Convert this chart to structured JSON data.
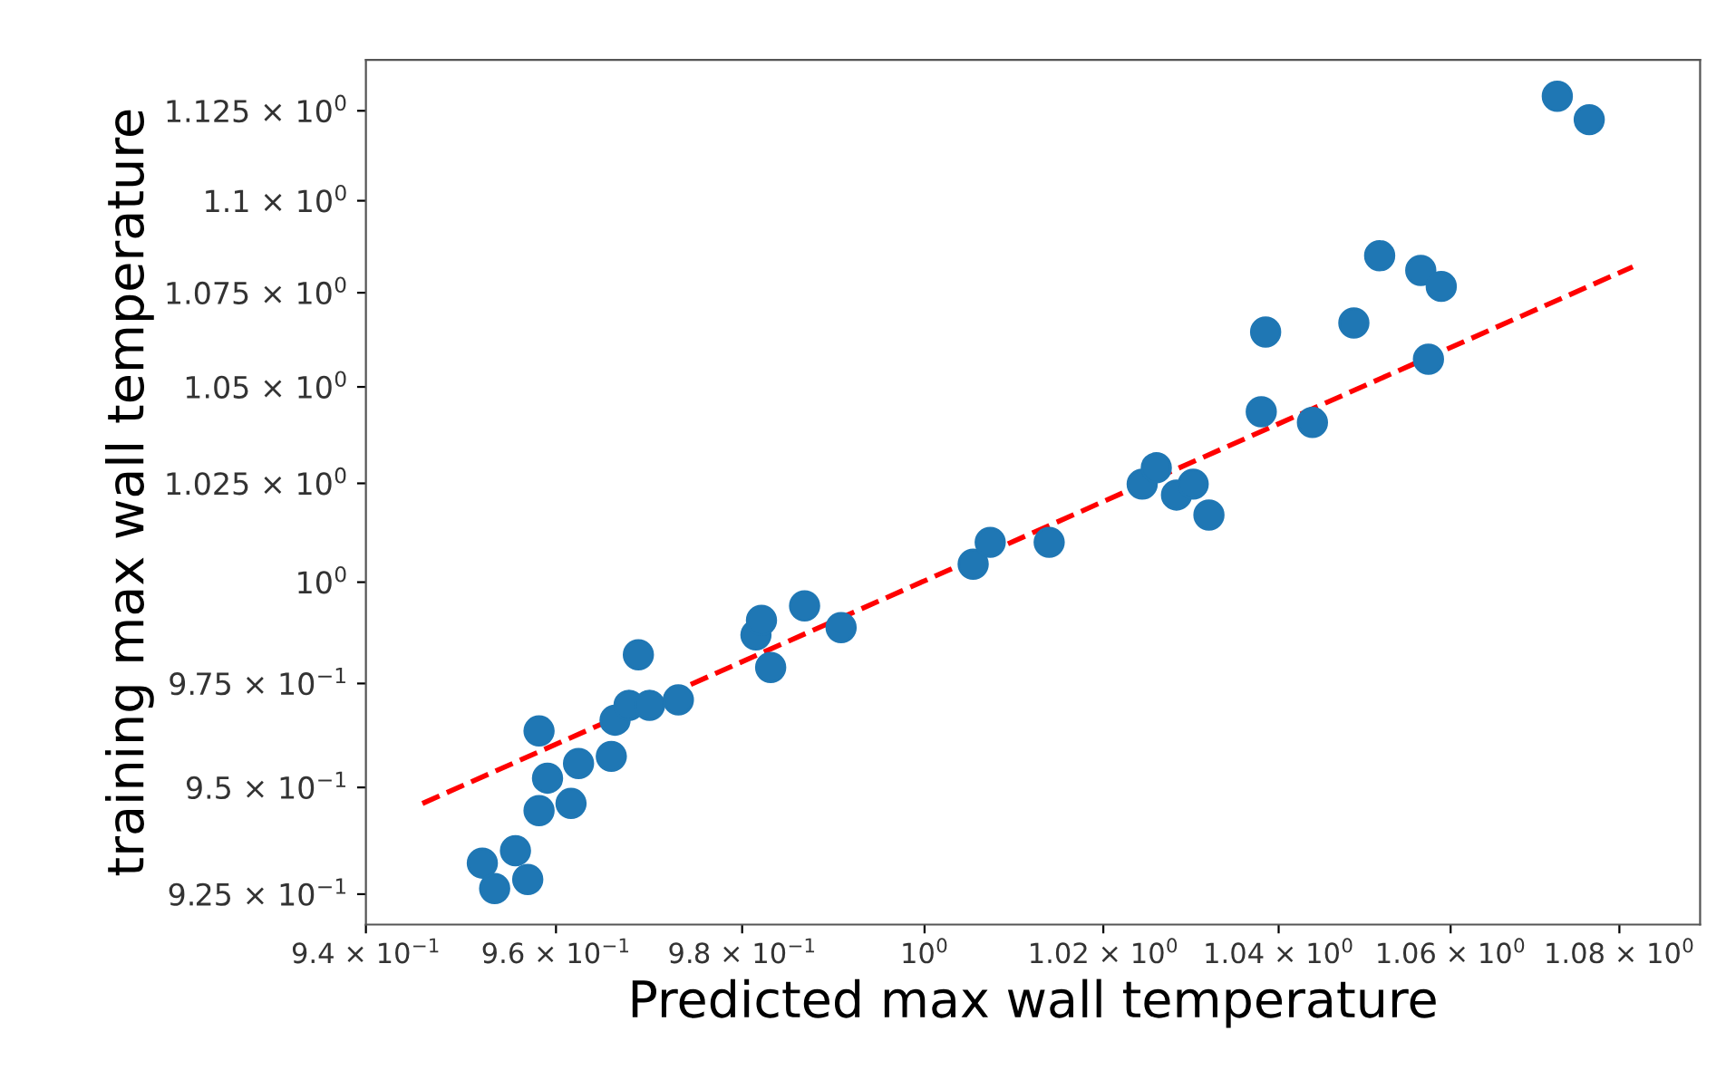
{
  "chart_data": {
    "type": "scatter",
    "xlabel": "Predicted max wall temperature",
    "ylabel": "training max wall temperature",
    "log": "xy",
    "grid": false,
    "legend": false,
    "xlim": [
      0.94,
      1.0897
    ],
    "ylim": [
      0.918,
      1.1394
    ],
    "xticks": [
      {
        "value": 0.94,
        "label": "9.4 × 10$^{−1}$"
      },
      {
        "value": 0.96,
        "label": "9.6 × 10$^{−1}$"
      },
      {
        "value": 0.98,
        "label": "9.8 × 10$^{−1}$"
      },
      {
        "value": 1.0,
        "label": "10$^{0}$"
      },
      {
        "value": 1.02,
        "label": "1.02 × 10$^{0}$"
      },
      {
        "value": 1.04,
        "label": "1.04 × 10$^{0}$"
      },
      {
        "value": 1.06,
        "label": "1.06 × 10$^{0}$"
      },
      {
        "value": 1.08,
        "label": "1.08 × 10$^{0}$"
      }
    ],
    "yticks": [
      {
        "value": 0.925,
        "label": "9.25 × 10$^{−1}$"
      },
      {
        "value": 0.95,
        "label": "9.5 × 10$^{−1}$"
      },
      {
        "value": 0.975,
        "label": "9.75 × 10$^{−1}$"
      },
      {
        "value": 1.0,
        "label": "10$^{0}$"
      },
      {
        "value": 1.025,
        "label": "1.025 × 10$^{0}$"
      },
      {
        "value": 1.05,
        "label": "1.05 × 10$^{0}$"
      },
      {
        "value": 1.075,
        "label": "1.075 × 10$^{0}$"
      },
      {
        "value": 1.1,
        "label": "1.1 × 10$^{0}$"
      },
      {
        "value": 1.125,
        "label": "1.125 × 10$^{0}$"
      }
    ],
    "series": [
      {
        "marker": "circle",
        "color": "#1f77b4",
        "x": [
          0.9522,
          0.9535,
          0.9557,
          0.957,
          0.9582,
          0.9591,
          0.9582,
          0.9616,
          0.9624,
          0.9659,
          0.9663,
          0.9678,
          0.97,
          0.9731,
          0.9688,
          0.9815,
          0.9821,
          0.9831,
          0.9868,
          0.9908,
          1.0054,
          1.0073,
          1.0139,
          1.0244,
          1.026,
          1.0283,
          1.0302,
          1.032,
          1.038,
          1.0439,
          1.0385,
          1.0487,
          1.0574,
          1.0517,
          1.0565,
          1.0589,
          1.0726,
          1.0764
        ],
        "values": [
          0.9322,
          0.9263,
          0.9351,
          0.9284,
          0.9445,
          0.9522,
          0.9635,
          0.9462,
          0.9557,
          0.9574,
          0.9661,
          0.9697,
          0.9697,
          0.971,
          0.982,
          0.9869,
          0.9905,
          0.9789,
          0.9941,
          0.9887,
          1.0045,
          1.01,
          1.01,
          1.0248,
          1.029,
          1.022,
          1.0248,
          1.0169,
          1.0435,
          1.0407,
          1.0645,
          1.0669,
          1.0573,
          1.085,
          1.081,
          1.0767,
          1.1291,
          1.1225
        ]
      },
      {
        "type": "line",
        "color": "#ff0000",
        "line_style": "dashed",
        "marker": "none",
        "x": [
          0.9459,
          1.0816
        ],
        "values": [
          0.9462,
          1.082
        ]
      }
    ]
  }
}
